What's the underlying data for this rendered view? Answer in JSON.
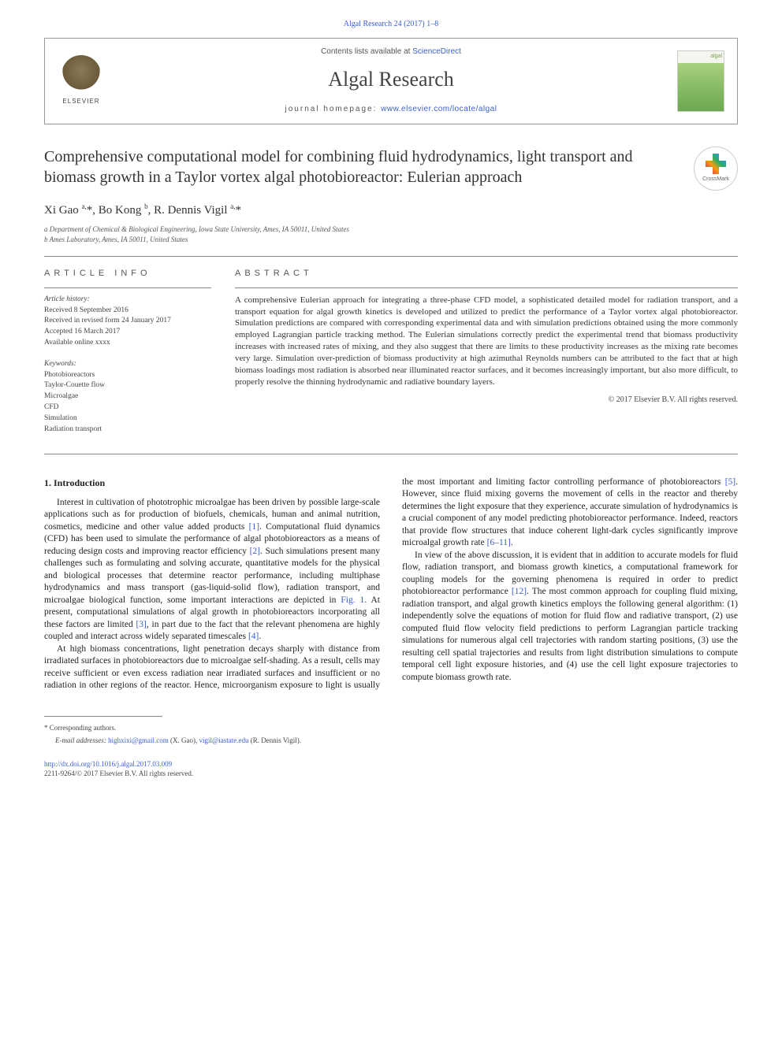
{
  "meta": {
    "citation": "Algal Research 24 (2017) 1–8",
    "contents_prefix": "Contents lists available at ",
    "contents_link": "ScienceDirect",
    "journal_name": "Algal Research",
    "homepage_prefix": "journal homepage: ",
    "homepage_url": "www.elsevier.com/locate/algal",
    "publisher_label": "ELSEVIER",
    "cover_label": "algal"
  },
  "crossmark_label": "CrossMark",
  "article": {
    "title": "Comprehensive computational model for combining fluid hydrodynamics, light transport and biomass growth in a Taylor vortex algal photobioreactor: Eulerian approach",
    "authors_html": "Xi Gao <sup>a,</sup>*, Bo Kong <sup>b</sup>, R. Dennis Vigil <sup>a,</sup>*",
    "affiliations": [
      "a  Department of Chemical & Biological Engineering, Iowa State University, Ames, IA 50011, United States",
      "b  Ames Laboratory, Ames, IA 50011, United States"
    ]
  },
  "info": {
    "head": "article info",
    "history_label": "Article history:",
    "history": [
      "Received 8 September 2016",
      "Received in revised form 24 January 2017",
      "Accepted 16 March 2017",
      "Available online xxxx"
    ],
    "keywords_label": "Keywords:",
    "keywords": [
      "Photobioreactors",
      "Taylor-Couette flow",
      "Microalgae",
      "CFD",
      "Simulation",
      "Radiation transport"
    ]
  },
  "abstract": {
    "head": "abstract",
    "text": "A comprehensive Eulerian approach for integrating a three-phase CFD model, a sophisticated detailed model for radiation transport, and a transport equation for algal growth kinetics is developed and utilized to predict the performance of a Taylor vortex algal photobioreactor. Simulation predictions are compared with corresponding experimental data and with simulation predictions obtained using the more commonly employed Lagrangian particle tracking method. The Eulerian simulations correctly predict the experimental trend that biomass productivity increases with increased rates of mixing, and they also suggest that there are limits to these productivity increases as the mixing rate becomes very large. Simulation over-prediction of biomass productivity at high azimuthal Reynolds numbers can be attributed to the fact that at high biomass loadings most radiation is absorbed near illuminated reactor surfaces, and it becomes increasingly important, but also more difficult, to properly resolve the thinning hydrodynamic and radiative boundary layers.",
    "copyright": "© 2017 Elsevier B.V. All rights reserved."
  },
  "body": {
    "intro_head": "1. Introduction",
    "p1a": "Interest in cultivation of phototrophic microalgae has been driven by possible large-scale applications such as for production of biofuels, chemicals, human and animal nutrition, cosmetics, medicine and other value added products ",
    "ref1": "[1]",
    "p1b": ". Computational fluid dynamics (CFD) has been used to simulate the performance of algal photobioreactors as a means of reducing design costs and improving reactor efficiency ",
    "ref2": "[2]",
    "p1c": ". Such simulations present many challenges such as formulating and solving accurate, quantitative models for the physical and biological processes that determine reactor performance, including multiphase hydrodynamics and mass transport (gas-liquid-solid flow), radiation transport, and microalgae biological function, some important interactions are depicted in ",
    "fig1": "Fig. 1",
    "p1d": ". At present, computational simulations of algal growth in photobioreactors incorporating all these factors are limited ",
    "ref3": "[3]",
    "p1e": ", in part due to the fact that the relevant phenomena are highly coupled and interact across widely separated timescales ",
    "ref4": "[4]",
    "p1f": ".",
    "p2a": "At high biomass concentrations, light penetration decays sharply with distance from irradiated surfaces in photobioreactors due to microalgae self-shading. As a result, cells may receive sufficient or even excess radiation near irradiated surfaces and insufficient or no radiation in other regions of the reactor. Hence, microorganism exposure to light is usually the most important and limiting factor controlling performance of photobioreactors ",
    "ref5": "[5]",
    "p2b": ". However, since fluid mixing governs the movement of cells in the reactor and thereby determines the light exposure that they experience, accurate simulation of hydrodynamics is a crucial component of any model predicting photobioreactor performance. Indeed, reactors that provide flow structures that induce coherent light-dark cycles significantly improve microalgal growth rate ",
    "ref6_11": "[6–11]",
    "p2c": ".",
    "p3a": "In view of the above discussion, it is evident that in addition to accurate models for fluid flow, radiation transport, and biomass growth kinetics, a computational framework for coupling models for the governing phenomena is required in order to predict photobioreactor performance ",
    "ref12": "[12]",
    "p3b": ". The most common approach for coupling fluid mixing, radiation transport, and algal growth kinetics employs the following general algorithm: (1) independently solve the equations of motion for fluid flow and radiative transport, (2) use computed fluid flow velocity field predictions to perform Lagrangian particle tracking simulations for numerous algal cell trajectories with random starting positions, (3) use the resulting cell spatial trajectories and results from light distribution simulations to compute temporal cell light exposure histories, and (4) use the cell light exposure trajectories to compute biomass growth rate."
  },
  "footer": {
    "corr_label": "* Corresponding authors.",
    "email_label": "E-mail addresses: ",
    "email1": "highxixi@gmail.com",
    "email1_who": " (X. Gao), ",
    "email2": "vigil@iastate.edu",
    "email2_who": " (R. Dennis Vigil).",
    "doi": "http://dx.doi.org/10.1016/j.algal.2017.03.009",
    "issn_line": "2211-9264/© 2017 Elsevier B.V. All rights reserved."
  },
  "colors": {
    "link": "#3b5fc9",
    "text": "#222222",
    "rule": "#888888"
  }
}
